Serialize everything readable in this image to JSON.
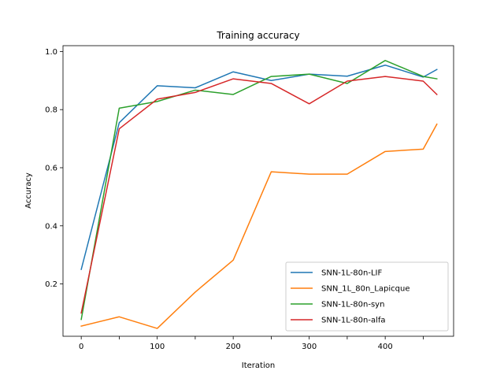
{
  "chart_data": {
    "type": "line",
    "title": "Training accuracy",
    "xlabel": "Iteration",
    "ylabel": "Accuracy",
    "xlim": [
      -24,
      490
    ],
    "ylim": [
      0.02,
      1.02
    ],
    "xticks": [
      0,
      50,
      100,
      150,
      200,
      250,
      300,
      350,
      400,
      450
    ],
    "yticks": [
      0.2,
      0.4,
      0.6,
      0.8,
      1.0
    ],
    "xtick_labels": [
      "0",
      "",
      "100",
      "",
      "200",
      "",
      "300",
      "",
      "400",
      ""
    ],
    "ytick_labels": [
      "0.2",
      "0.4",
      "0.6",
      "0.8",
      "1.0"
    ],
    "grid": false,
    "legend_position": "lower-right",
    "x": [
      0,
      50,
      100,
      150,
      200,
      250,
      300,
      350,
      400,
      450,
      468
    ],
    "series": [
      {
        "name": "SNN-1L-80n-LIF",
        "color": "#1f77b4",
        "values": [
          0.25,
          0.755,
          0.882,
          0.875,
          0.93,
          0.9,
          0.922,
          0.915,
          0.953,
          0.912,
          0.938
        ]
      },
      {
        "name": "SNN_1L_80n_Lapicque",
        "color": "#ff7f0e",
        "values": [
          0.055,
          0.087,
          0.047,
          0.172,
          0.282,
          0.586,
          0.578,
          0.578,
          0.656,
          0.664,
          0.75
        ]
      },
      {
        "name": "SNN-1L-80n-syn",
        "color": "#2ca02c",
        "values": [
          0.078,
          0.805,
          0.828,
          0.867,
          0.852,
          0.914,
          0.922,
          0.89,
          0.969,
          0.914,
          0.906
        ]
      },
      {
        "name": "SNN-1L-80n-alfa",
        "color": "#d62728",
        "values": [
          0.1,
          0.734,
          0.836,
          0.859,
          0.906,
          0.89,
          0.82,
          0.898,
          0.914,
          0.898,
          0.852
        ]
      }
    ]
  }
}
